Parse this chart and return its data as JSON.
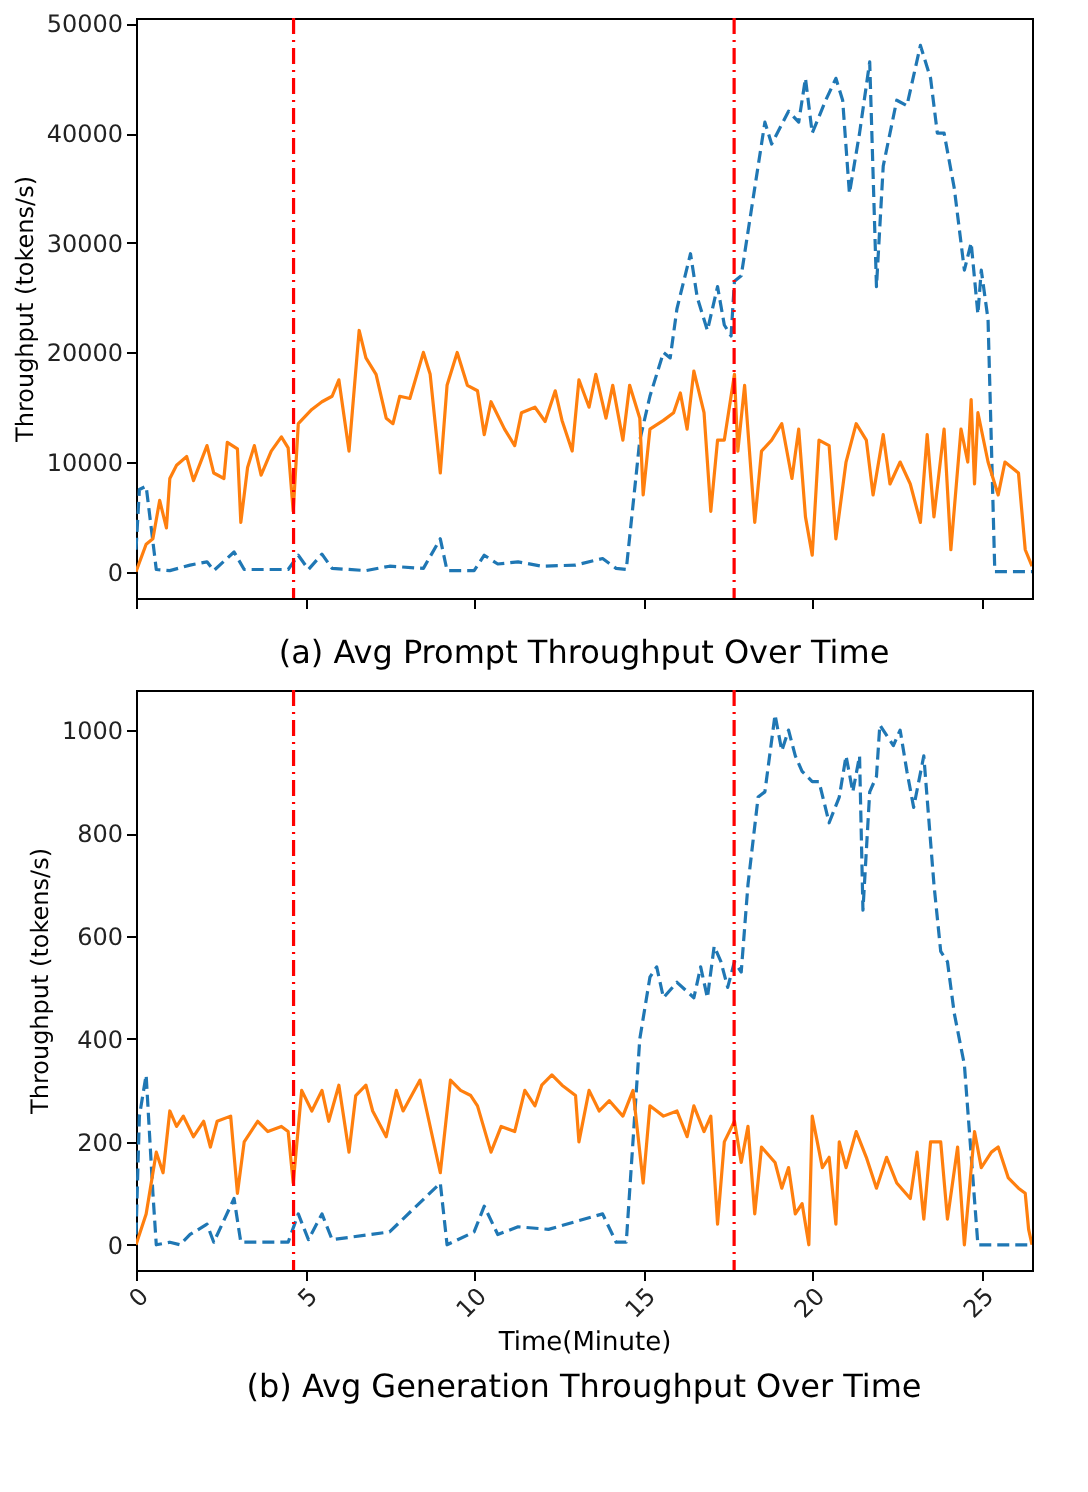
{
  "chart_data": [
    {
      "type": "line",
      "title": "(a) Avg Prompt Throughput Over Time",
      "ylabel": "Throughput (tokens/s)",
      "xlim": [
        0,
        26.5
      ],
      "xticks": [
        0,
        5,
        10,
        15,
        20,
        25
      ],
      "ylim": [
        -2400,
        50500
      ],
      "yticks": [
        0,
        10000,
        20000,
        30000,
        40000,
        50000
      ],
      "tick_labels": "y",
      "grid": false,
      "series": [
        {
          "color": "#1f77b4",
          "line_style": "dashed",
          "x": [
            0,
            0.1,
            0.3,
            0.45,
            0.6,
            1.0,
            1.6,
            2.1,
            2.3,
            2.9,
            3.2,
            4.5,
            4.8,
            5.1,
            5.5,
            5.8,
            6.8,
            7.5,
            8.5,
            9.0,
            9.2,
            10.0,
            10.3,
            10.7,
            11.3,
            12,
            13,
            13.8,
            14.2,
            14.5,
            14.9,
            15.2,
            15.6,
            15.8,
            16.0,
            16.4,
            16.6,
            16.9,
            17.2,
            17.4,
            17.6,
            17.7,
            17.9,
            18.2,
            18.4,
            18.6,
            18.8,
            19.3,
            19.6,
            19.8,
            20.0,
            20.4,
            20.7,
            20.9,
            21.1,
            21.4,
            21.7,
            21.9,
            22.1,
            22.5,
            22.8,
            23.2,
            23.5,
            23.7,
            23.9,
            24.2,
            24.5,
            24.7,
            24.9,
            25.0,
            25.2,
            25.4,
            26.5
          ],
          "values": [
            2000,
            7500,
            7800,
            4000,
            200,
            100,
            600,
            900,
            100,
            1800,
            200,
            200,
            1500,
            200,
            1600,
            300,
            100,
            500,
            300,
            3000,
            100,
            100,
            1500,
            700,
            900,
            500,
            600,
            1200,
            300,
            200,
            12000,
            16000,
            20000,
            19500,
            24000,
            29000,
            25000,
            22000,
            26000,
            22500,
            21500,
            26500,
            27000,
            33000,
            37000,
            41000,
            39000,
            42000,
            41000,
            45000,
            40000,
            43000,
            45000,
            43000,
            34500,
            40000,
            46500,
            26000,
            37000,
            43000,
            42500,
            48000,
            45000,
            40000,
            40000,
            35000,
            27500,
            30000,
            23500,
            27500,
            23000,
            0,
            0
          ]
        },
        {
          "color": "#ff7f0e",
          "line_style": "solid",
          "x": [
            0,
            0.3,
            0.5,
            0.7,
            0.9,
            1.0,
            1.2,
            1.5,
            1.7,
            2.1,
            2.3,
            2.6,
            2.7,
            3.0,
            3.1,
            3.3,
            3.5,
            3.7,
            4.0,
            4.3,
            4.5,
            4.65,
            4.8,
            5.2,
            5.5,
            5.8,
            6.0,
            6.3,
            6.6,
            6.8,
            7.1,
            7.4,
            7.6,
            7.8,
            8.1,
            8.5,
            8.7,
            9.0,
            9.2,
            9.5,
            9.8,
            10.1,
            10.3,
            10.5,
            10.9,
            11.2,
            11.4,
            11.8,
            12.1,
            12.4,
            12.6,
            12.9,
            13.1,
            13.4,
            13.6,
            13.9,
            14.1,
            14.4,
            14.6,
            14.9,
            15.0,
            15.2,
            15.6,
            15.9,
            16.1,
            16.3,
            16.5,
            16.8,
            17.0,
            17.2,
            17.4,
            17.7,
            17.8,
            18.0,
            18.3,
            18.5,
            18.8,
            19.1,
            19.4,
            19.6,
            19.8,
            20.0,
            20.2,
            20.5,
            20.7,
            21.0,
            21.3,
            21.6,
            21.8,
            22.1,
            22.3,
            22.6,
            22.9,
            23.2,
            23.4,
            23.6,
            23.9,
            24.1,
            24.4,
            24.6,
            24.7,
            24.8,
            24.9,
            25.2,
            25.5,
            25.7,
            26.1,
            26.3,
            26.5
          ],
          "values": [
            0,
            2500,
            3000,
            6500,
            4000,
            8500,
            9700,
            10500,
            8300,
            11500,
            9000,
            8500,
            11800,
            11200,
            4500,
            9500,
            11500,
            8800,
            11000,
            12300,
            11300,
            5500,
            13500,
            14800,
            15500,
            16000,
            17500,
            11000,
            22000,
            19500,
            18000,
            14000,
            13500,
            16000,
            15800,
            20000,
            18000,
            9000,
            17000,
            20000,
            17000,
            16500,
            12500,
            15500,
            13000,
            11500,
            14500,
            15000,
            13700,
            16500,
            13800,
            11000,
            17500,
            15000,
            18000,
            14000,
            17000,
            12000,
            17000,
            14000,
            7000,
            13000,
            13800,
            14500,
            16300,
            13000,
            18300,
            14500,
            5500,
            12000,
            12000,
            18000,
            11000,
            17000,
            4500,
            11000,
            12000,
            13500,
            8500,
            13000,
            5000,
            1500,
            12000,
            11500,
            3000,
            10000,
            13500,
            12000,
            7000,
            12500,
            8000,
            10000,
            8000,
            4500,
            12500,
            5000,
            13000,
            2000,
            13000,
            10000,
            15700,
            8000,
            14500,
            10000,
            7000,
            10000,
            9000,
            2000,
            500
          ]
        }
      ],
      "ref_lines": [
        {
          "axis": "x",
          "value": 4.66,
          "color": "#ff0000",
          "line_style": "dashdot"
        },
        {
          "axis": "x",
          "value": 17.69,
          "color": "#ff0000",
          "line_style": "dashdot"
        }
      ]
    },
    {
      "type": "line",
      "title": "(b) Avg Generation Throughput Over Time",
      "xlabel": "Time(Minute)",
      "ylabel": "Throughput (tokens/s)",
      "xlim": [
        0,
        26.5
      ],
      "xticks": [
        0,
        5,
        10,
        15,
        20,
        25
      ],
      "ylim": [
        -49,
        1078
      ],
      "yticks": [
        0,
        200,
        400,
        600,
        800,
        1000
      ],
      "grid": false,
      "series": [
        {
          "color": "#1f77b4",
          "line_style": "dashed",
          "x": [
            0,
            0.1,
            0.3,
            0.5,
            0.6,
            1.0,
            1.3,
            1.6,
            2.1,
            2.3,
            2.9,
            3.1,
            4.5,
            4.8,
            5.1,
            5.5,
            5.8,
            7.5,
            9.0,
            9.2,
            10.0,
            10.3,
            10.7,
            11.3,
            12.2,
            13.8,
            14.2,
            14.5,
            14.9,
            15.2,
            15.4,
            15.6,
            16.0,
            16.5,
            16.7,
            16.9,
            17.1,
            17.3,
            17.5,
            17.7,
            17.9,
            18.1,
            18.4,
            18.6,
            18.9,
            19.1,
            19.3,
            19.5,
            19.7,
            20.0,
            20.2,
            20.5,
            20.8,
            21.0,
            21.2,
            21.4,
            21.5,
            21.7,
            21.9,
            22.0,
            22.4,
            22.6,
            22.8,
            23.0,
            23.3,
            23.6,
            23.8,
            24.0,
            24.2,
            24.5,
            24.9,
            26.5
          ],
          "values": [
            20,
            250,
            330,
            100,
            0,
            5,
            0,
            20,
            40,
            5,
            90,
            5,
            5,
            60,
            10,
            60,
            10,
            25,
            120,
            0,
            25,
            75,
            20,
            35,
            30,
            60,
            5,
            5,
            400,
            520,
            540,
            480,
            510,
            480,
            540,
            480,
            580,
            550,
            500,
            550,
            530,
            700,
            870,
            880,
            1030,
            960,
            1000,
            950,
            920,
            900,
            900,
            820,
            870,
            950,
            880,
            950,
            650,
            880,
            910,
            1010,
            970,
            1000,
            920,
            850,
            950,
            700,
            570,
            550,
            450,
            350,
            0,
            0
          ]
        },
        {
          "color": "#ff7f0e",
          "line_style": "solid",
          "x": [
            0,
            0.3,
            0.6,
            0.8,
            1.0,
            1.2,
            1.4,
            1.7,
            2.0,
            2.2,
            2.4,
            2.8,
            3.0,
            3.2,
            3.6,
            3.9,
            4.3,
            4.5,
            4.65,
            4.9,
            5.2,
            5.5,
            5.7,
            6.0,
            6.3,
            6.5,
            6.8,
            7.0,
            7.4,
            7.7,
            7.9,
            8.4,
            8.6,
            9.0,
            9.3,
            9.6,
            9.9,
            10.1,
            10.5,
            10.8,
            11.2,
            11.5,
            11.8,
            12.0,
            12.3,
            12.6,
            13.0,
            13.1,
            13.4,
            13.7,
            14.0,
            14.4,
            14.7,
            15.0,
            15.2,
            15.6,
            16.0,
            16.3,
            16.5,
            16.8,
            17.0,
            17.2,
            17.4,
            17.7,
            17.9,
            18.1,
            18.3,
            18.5,
            18.9,
            19.1,
            19.3,
            19.5,
            19.7,
            19.9,
            20.0,
            20.3,
            20.5,
            20.7,
            20.8,
            21.0,
            21.3,
            21.6,
            21.9,
            22.2,
            22.5,
            22.9,
            23.1,
            23.3,
            23.5,
            23.8,
            24.0,
            24.3,
            24.5,
            24.8,
            25.0,
            25.3,
            25.5,
            25.8,
            26.1,
            26.3,
            26.4,
            26.5
          ],
          "values": [
            0,
            60,
            180,
            140,
            260,
            230,
            250,
            210,
            240,
            190,
            240,
            250,
            100,
            200,
            240,
            220,
            230,
            220,
            120,
            300,
            260,
            300,
            240,
            310,
            180,
            290,
            310,
            260,
            210,
            300,
            260,
            320,
            260,
            140,
            320,
            300,
            290,
            270,
            180,
            230,
            220,
            300,
            270,
            310,
            330,
            310,
            290,
            200,
            300,
            260,
            280,
            250,
            300,
            120,
            270,
            250,
            260,
            210,
            270,
            220,
            250,
            40,
            200,
            240,
            160,
            230,
            60,
            190,
            160,
            110,
            150,
            60,
            80,
            0,
            250,
            150,
            170,
            40,
            200,
            150,
            220,
            170,
            110,
            170,
            120,
            90,
            180,
            50,
            200,
            200,
            50,
            190,
            0,
            220,
            150,
            180,
            190,
            130,
            110,
            100,
            30,
            0
          ]
        }
      ],
      "ref_lines": [
        {
          "axis": "x",
          "value": 4.66,
          "color": "#ff0000",
          "line_style": "dashdot"
        },
        {
          "axis": "x",
          "value": 17.69,
          "color": "#ff0000",
          "line_style": "dashdot"
        }
      ]
    }
  ]
}
